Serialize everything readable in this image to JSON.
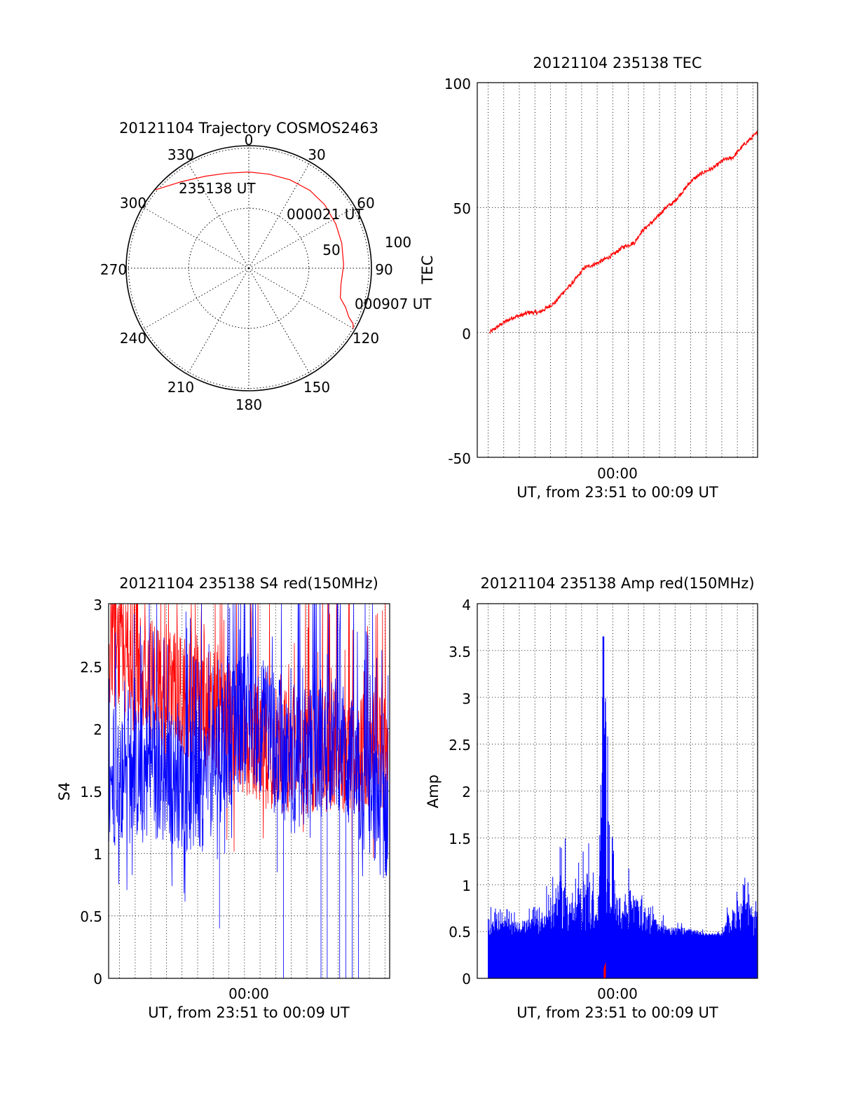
{
  "colors": {
    "primary": "#ff0000",
    "secondary": "#0000ff",
    "grid": "#000000",
    "frame": "#000000"
  },
  "polar": {
    "title": "20121104 Trajectory COSMOS2463",
    "azimuth_labels": [
      "0",
      "30",
      "60",
      "90",
      "120",
      "150",
      "180",
      "210",
      "240",
      "270",
      "300",
      "330"
    ],
    "elevation_labels": [
      "50",
      "100"
    ],
    "start_label": "235138 UT",
    "mid_label": "000021 UT",
    "end_label": "000907 UT",
    "chart_data": {
      "type": "polar-trajectory",
      "series": [
        {
          "name": "COSMOS2463",
          "color": "red",
          "azimuth_deg": [
            -50,
            -38,
            -25,
            -13,
            0,
            12,
            25,
            38,
            50,
            63,
            75,
            88,
            100,
            108,
            112,
            116,
            118,
            120
          ],
          "elevation_deg": [
            0,
            9,
            15,
            18,
            19,
            19,
            18,
            17,
            17,
            18,
            19,
            20,
            21,
            19,
            13,
            8,
            3,
            1
          ]
        }
      ],
      "radial_rings": [
        0,
        50,
        90
      ],
      "spokes_deg": [
        0,
        30,
        60,
        90,
        120,
        150,
        180,
        210,
        240,
        270,
        300,
        330
      ]
    }
  },
  "tec": {
    "title": "20121104 235138 TEC",
    "ylabel": "TEC",
    "xtick": "00:00",
    "xlabel": "UT, from 23:51 to 00:09 UT",
    "yticks": [
      "100",
      "50",
      "0",
      "-50"
    ],
    "chart_data": {
      "type": "line",
      "xlim": [
        -8.7,
        9.3
      ],
      "ylim": [
        -50,
        100
      ],
      "x_unit": "minutes from 00:00",
      "series": [
        {
          "name": "TEC",
          "color": "red",
          "x": [
            -7.9,
            -7,
            -6.4,
            -5.8,
            -5.4,
            -4.7,
            -4.2,
            -3.7,
            -3.2,
            -2.7,
            -2.3,
            -1.8,
            -1.3,
            -0.9,
            -0.6,
            0,
            0.6,
            1.4,
            1.8,
            2.3,
            2.7,
            3.4,
            3.9,
            4.3,
            5.1,
            5.8,
            6.5,
            7.1,
            7.7,
            8.4,
            9.3
          ],
          "y": [
            0,
            4,
            6,
            7,
            8,
            8,
            10,
            12,
            16,
            19,
            22,
            26,
            27,
            28,
            29,
            31,
            34,
            36,
            40,
            43,
            45,
            50,
            52,
            55,
            61,
            64,
            66,
            69,
            70,
            75,
            80
          ]
        }
      ]
    }
  },
  "s4": {
    "title": "20121104 235138 S4 red(150MHz)",
    "ylabel": "S4",
    "xtick": "00:00",
    "xlabel": "UT, from 23:51 to 00:09 UT",
    "yticks": [
      "3",
      "2.5",
      "2",
      "1.5",
      "1",
      "0.5",
      "0"
    ],
    "chart_data": {
      "type": "line",
      "xlim": [
        -8.7,
        9.3
      ],
      "ylim": [
        0,
        3
      ],
      "x_unit": "minutes from 00:00",
      "series": [
        {
          "name": "S4 red (150MHz)",
          "color": "red",
          "x": [
            -8.7,
            -7.5,
            -6,
            -4.5,
            -3,
            -1.5,
            0,
            1.5,
            3,
            4.5,
            6,
            7.5,
            9.2
          ],
          "y": [
            2.7,
            2.5,
            2.4,
            2.3,
            2.2,
            2.1,
            1.95,
            1.85,
            1.8,
            1.8,
            1.85,
            1.8,
            1.8
          ]
        },
        {
          "name": "S4 blue",
          "color": "blue",
          "x": [
            -8.7,
            -7.5,
            -6,
            -4.5,
            -3,
            -1.5,
            0,
            1.5,
            3,
            4.5,
            6,
            7.5,
            9.2
          ],
          "y": [
            1.6,
            1.6,
            1.7,
            1.6,
            1.5,
            1.8,
            2.1,
            2.0,
            1.7,
            1.8,
            1.9,
            1.5,
            1.3
          ]
        }
      ],
      "notable_dips": [
        {
          "x": -1.6,
          "y": 0.4
        },
        {
          "x": 2.1,
          "y": 0.85
        }
      ]
    }
  },
  "amp": {
    "title": "20121104 235138 Amp red(150MHz)",
    "ylabel": "Amp",
    "xtick": "00:00",
    "xlabel": "UT, from 23:51 to 00:09 UT",
    "yticks": [
      "4",
      "3.5",
      "3",
      "2.5",
      "2",
      "1.5",
      "1",
      "0.5",
      "0"
    ],
    "chart_data": {
      "type": "bar",
      "xlim": [
        -8.7,
        9.3
      ],
      "ylim": [
        0,
        4
      ],
      "x_unit": "minutes from 00:00",
      "series": [
        {
          "name": "Amp blue",
          "color": "blue",
          "x": [
            -8,
            -6,
            -5,
            -4.5,
            -3,
            -2.5,
            -1.6,
            -1,
            -0.6,
            0.5,
            1,
            2,
            3,
            4,
            5,
            6,
            7,
            7.5,
            8.5,
            9.2
          ],
          "y": [
            0.8,
            0.7,
            0.8,
            0.9,
            1.6,
            1.0,
            1.7,
            0.8,
            3.65,
            0.9,
            1.35,
            0.9,
            0.7,
            0.6,
            0.6,
            0.5,
            0.5,
            0.9,
            1.1,
            0.9
          ]
        },
        {
          "name": "Amp red",
          "color": "red",
          "x": [
            -0.5
          ],
          "y": [
            0.18
          ]
        }
      ]
    }
  }
}
